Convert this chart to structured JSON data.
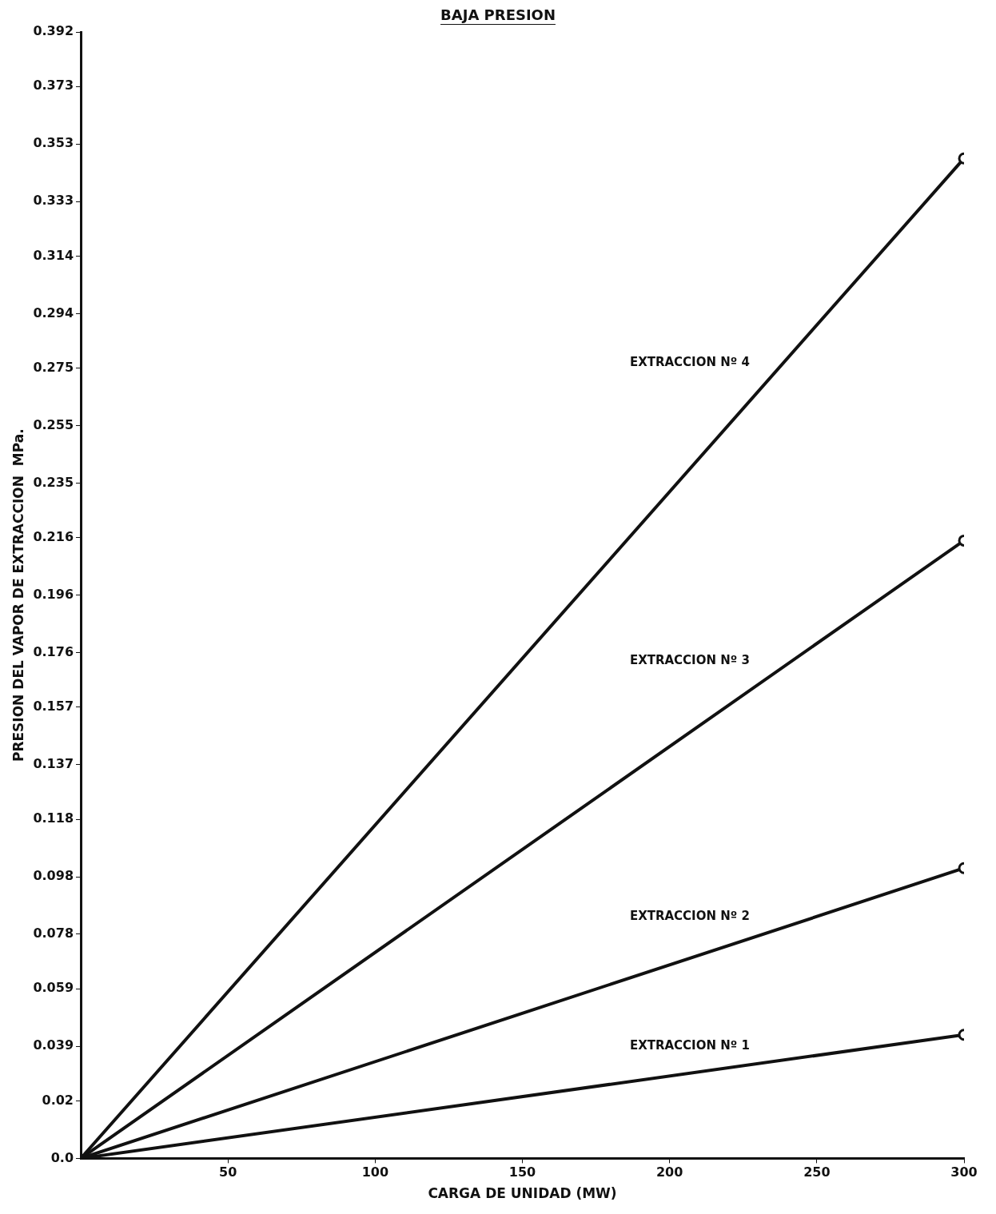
{
  "chart_data": {
    "type": "line",
    "title": "BAJA PRESION",
    "xlabel": "CARGA DE UNIDAD (MW)",
    "ylabel": "PRESION DEL VAPOR DE EXTRACCION  MPa.",
    "x": [
      0,
      300
    ],
    "series": [
      {
        "name": "EXTRACCION Nº 4",
        "color": "#111111",
        "values": [
          0,
          0.348
        ]
      },
      {
        "name": "EXTRACCION Nº 3",
        "color": "#111111",
        "values": [
          0,
          0.215
        ]
      },
      {
        "name": "EXTRACCION Nº 2",
        "color": "#111111",
        "values": [
          0,
          0.101
        ]
      },
      {
        "name": "EXTRACCION Nº 1",
        "color": "#111111",
        "values": [
          0,
          0.043
        ]
      }
    ],
    "xlim": [
      0,
      300
    ],
    "xticks": [
      50,
      100,
      150,
      200,
      250,
      300
    ],
    "ylim": [
      0,
      0.392
    ],
    "yticks": [
      {
        "value": 0,
        "label": "0.0"
      },
      0.02,
      0.039,
      0.059,
      0.078,
      0.098,
      0.118,
      0.137,
      0.157,
      0.176,
      0.196,
      0.216,
      0.235,
      0.255,
      0.275,
      0.294,
      0.314,
      0.333,
      0.353,
      0.373,
      0.392
    ],
    "grid": false,
    "legend": false,
    "marker": "circle",
    "line_style": "solid"
  }
}
